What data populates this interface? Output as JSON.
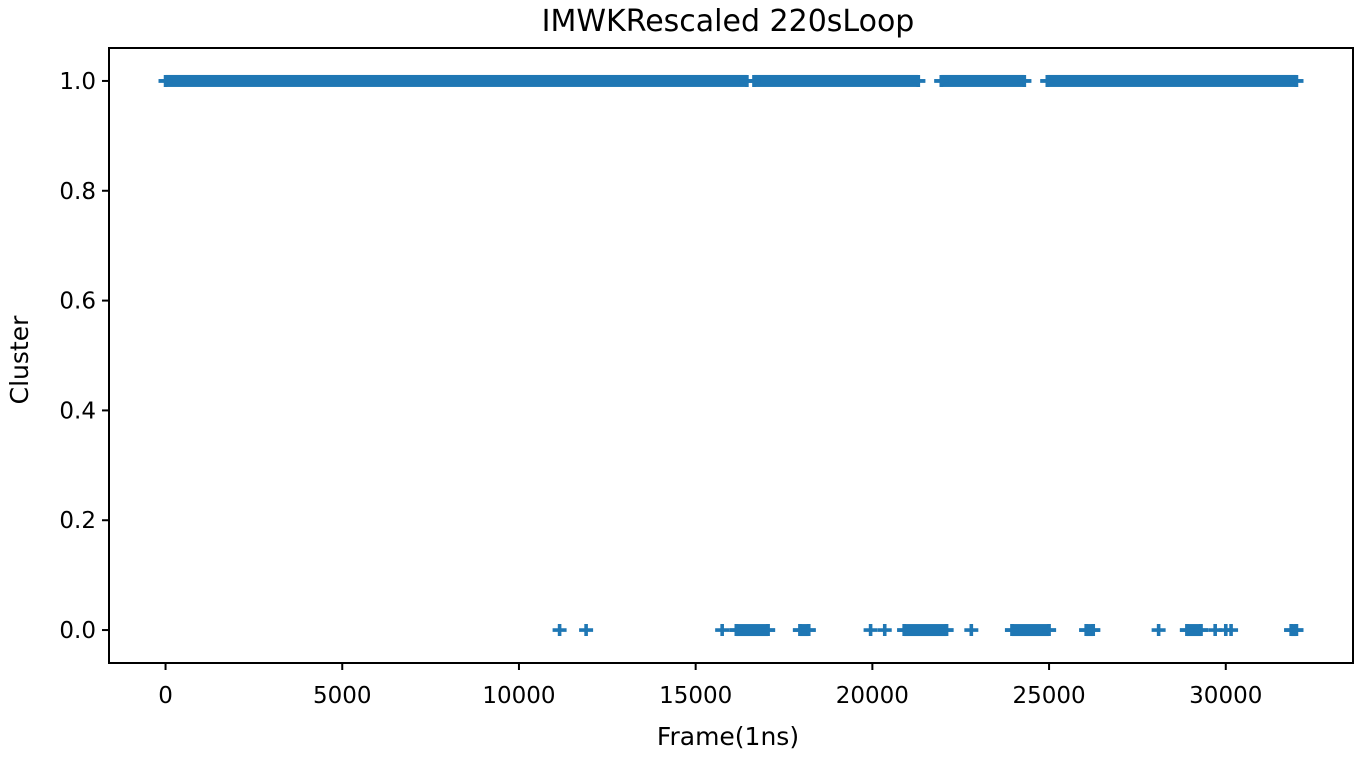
{
  "chart_data": {
    "type": "scatter",
    "title": "IMWKRescaled 220sLoop",
    "xlabel": "Frame(1ns)",
    "ylabel": "Cluster",
    "xlim": [
      -1600,
      33600
    ],
    "ylim": [
      -0.06,
      1.06
    ],
    "xticks": [
      0,
      5000,
      10000,
      15000,
      20000,
      25000,
      30000
    ],
    "xtick_labels": [
      "0",
      "5000",
      "10000",
      "15000",
      "20000",
      "25000",
      "30000"
    ],
    "yticks": [
      0.0,
      0.2,
      0.4,
      0.6,
      0.8,
      1.0
    ],
    "ytick_labels": [
      "0.0",
      "0.2",
      "0.4",
      "0.6",
      "0.8",
      "1.0"
    ],
    "grid": false,
    "marker": "+",
    "color": "#1f77b4",
    "cluster_1_ranges": [
      [
        0,
        16450
      ],
      [
        16650,
        21300
      ],
      [
        21950,
        24300
      ],
      [
        24950,
        32000
      ]
    ],
    "cluster_0_ranges": [
      [
        16150,
        17050
      ],
      [
        17950,
        18200
      ],
      [
        20900,
        22100
      ],
      [
        23950,
        25000
      ],
      [
        26050,
        26250
      ],
      [
        28900,
        29300
      ],
      [
        31850,
        32000
      ]
    ],
    "cluster_0_points": [
      11150,
      11900,
      15750,
      19950,
      20350,
      22800,
      28100,
      29700,
      30000,
      30150
    ]
  }
}
